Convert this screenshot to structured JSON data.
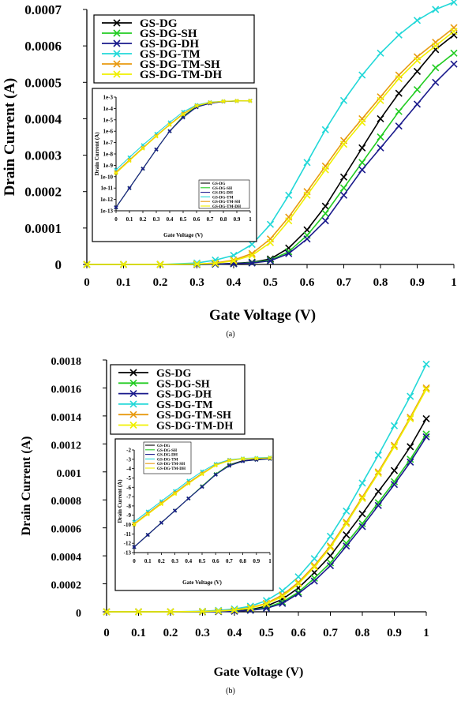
{
  "panels": [
    {
      "caption": "(a)",
      "chart_data": {
        "type": "line",
        "xlabel": "Gate Voltage (V)",
        "ylabel": "Drain Current (A)",
        "xlim": [
          0,
          1
        ],
        "ylim": [
          0,
          0.0007
        ],
        "x_ticks": [
          "0",
          "0.1",
          "0.2",
          "0.3",
          "0.4",
          "0.5",
          "0.6",
          "0.7",
          "0.8",
          "0.9",
          "1"
        ],
        "y_ticks": [
          "0",
          "0.0001",
          "0.0002",
          "0.0003",
          "0.0004",
          "0.0005",
          "0.0006",
          "0.0007"
        ],
        "grid": false,
        "legend_position": "top-left",
        "x": [
          0,
          0.1,
          0.2,
          0.3,
          0.35,
          0.4,
          0.45,
          0.5,
          0.55,
          0.6,
          0.65,
          0.7,
          0.75,
          0.8,
          0.85,
          0.9,
          0.95,
          1
        ],
        "series": [
          {
            "name": "GS-DG",
            "color": "#000000",
            "values": [
              0,
              0,
              0,
              0,
              1e-06,
              3e-06,
              6e-06,
              1.5e-05,
              4.5e-05,
              9.5e-05,
              0.00016,
              0.00024,
              0.00032,
              0.0004,
              0.00047,
              0.00053,
              0.00059,
              0.00063
            ]
          },
          {
            "name": "GS-DG-SH",
            "color": "#22cc22",
            "values": [
              0,
              0,
              0,
              0,
              1e-06,
              2e-06,
              5e-06,
              1.2e-05,
              3.5e-05,
              8e-05,
              0.00014,
              0.00021,
              0.00028,
              0.00035,
              0.00042,
              0.00048,
              0.00054,
              0.00058
            ]
          },
          {
            "name": "GS-DG-DH",
            "color": "#1a1a8c",
            "values": [
              0,
              0,
              0,
              0,
              1e-06,
              2e-06,
              4e-06,
              1e-05,
              3e-05,
              7e-05,
              0.00012,
              0.00019,
              0.00026,
              0.00032,
              0.00038,
              0.00044,
              0.0005,
              0.00055
            ]
          },
          {
            "name": "GS-DG-TM",
            "color": "#22d8d8",
            "values": [
              0,
              0,
              0,
              4e-06,
              1.2e-05,
              2.5e-05,
              5.5e-05,
              0.00011,
              0.00019,
              0.00028,
              0.00037,
              0.00045,
              0.00052,
              0.00058,
              0.00063,
              0.00067,
              0.0007,
              0.00072
            ]
          },
          {
            "name": "GS-DG-TM-SH",
            "color": "#e89a10",
            "values": [
              0,
              0,
              0,
              1e-06,
              4e-06,
              1.2e-05,
              3e-05,
              7e-05,
              0.00013,
              0.0002,
              0.00027,
              0.00034,
              0.0004,
              0.00046,
              0.00052,
              0.00057,
              0.00061,
              0.00065
            ]
          },
          {
            "name": "GS-DG-TM-DH",
            "color": "#f0f000",
            "values": [
              0,
              0,
              0,
              1e-06,
              3e-06,
              1e-05,
              2.5e-05,
              6e-05,
              0.00012,
              0.00019,
              0.00026,
              0.00033,
              0.00039,
              0.00045,
              0.00051,
              0.00056,
              0.0006,
              0.00064
            ]
          }
        ],
        "inset": {
          "type": "line",
          "xlabel": "Gate Voltage (V)",
          "ylabel": "Drain Current (A)",
          "y_scale": "log",
          "xlim": [
            0,
            1
          ],
          "ylim": [
            1e-13,
            0.001
          ],
          "x_ticks": [
            "0",
            "0.1",
            "0.2",
            "0.3",
            "0.4",
            "0.5",
            "0.6",
            "0.7",
            "0.8",
            "0.9",
            "1"
          ],
          "y_tick_values": [
            0.001,
            0.0001,
            1e-05,
            1e-06,
            1e-07,
            1e-08,
            1e-09,
            1e-10,
            1e-11,
            1e-12,
            1e-13
          ],
          "y_ticks": [
            "1e-3",
            "1e-4",
            "1e-5",
            "1e-6",
            "1e-7",
            "1e-8",
            "1e-9",
            "1e-10",
            "1e-11",
            "1e-12",
            "1e-13"
          ],
          "legend_position": "bottom-right",
          "legend": [
            "GS-DG",
            "GS-DG-SH",
            "GS-DG-DH",
            "GS-DG-TM",
            "GS-DG-TM-SH",
            "GS-DG-TM-DH"
          ],
          "x": [
            0,
            0.1,
            0.2,
            0.3,
            0.4,
            0.5,
            0.6,
            0.7,
            0.8,
            0.9,
            1
          ],
          "series": [
            {
              "name": "GS-DG",
              "color": "#000000",
              "values": [
                2e-13,
                1e-11,
                5e-10,
                2.5e-08,
                1e-06,
                2e-05,
                0.00015,
                0.0003,
                0.00042,
                0.00046,
                0.00047
              ]
            },
            {
              "name": "GS-DG-SH",
              "color": "#22cc22",
              "values": [
                2e-13,
                1e-11,
                5e-10,
                2.5e-08,
                1e-06,
                1.8e-05,
                0.00014,
                0.00029,
                0.00041,
                0.00045,
                0.00047
              ]
            },
            {
              "name": "GS-DG-DH",
              "color": "#1a1a8c",
              "values": [
                2e-13,
                1e-11,
                5e-10,
                2.5e-08,
                1e-06,
                1.6e-05,
                0.00013,
                0.00028,
                0.0004,
                0.00045,
                0.00047
              ]
            },
            {
              "name": "GS-DG-TM",
              "color": "#22d8d8",
              "values": [
                4e-10,
                5e-09,
                6e-08,
                6e-07,
                6e-06,
                5e-05,
                0.0002,
                0.00036,
                0.00044,
                0.00046,
                0.00047
              ]
            },
            {
              "name": "GS-DG-TM-SH",
              "color": "#e89a10",
              "values": [
                2.5e-10,
                3e-09,
                3.5e-08,
                4e-07,
                4e-06,
                3.5e-05,
                0.00018,
                0.00034,
                0.00043,
                0.00046,
                0.00047
              ]
            },
            {
              "name": "GS-DG-TM-DH",
              "color": "#f0f000",
              "values": [
                2e-10,
                2.5e-09,
                3e-08,
                3.5e-07,
                3.5e-06,
                3e-05,
                0.00017,
                0.00033,
                0.00043,
                0.00046,
                0.00047
              ]
            }
          ]
        }
      }
    },
    {
      "caption": "(b)",
      "chart_data": {
        "type": "line",
        "xlabel": "Gate Voltage (V)",
        "ylabel": "Drain Current (A)",
        "xlim": [
          0,
          1
        ],
        "ylim": [
          0,
          0.0018
        ],
        "x_ticks": [
          "0",
          "0.1",
          "0.2",
          "0.3",
          "0.4",
          "0.5",
          "0.6",
          "0.7",
          "0.8",
          "0.9",
          "1"
        ],
        "y_ticks": [
          "0",
          "0.0002",
          "0.0004",
          "0.0006",
          "0.0008",
          "0.001",
          "0.0012",
          "0.0014",
          "0.0016",
          "0.0018"
        ],
        "grid": false,
        "legend_position": "top-left",
        "x": [
          0,
          0.1,
          0.2,
          0.3,
          0.35,
          0.4,
          0.45,
          0.5,
          0.55,
          0.6,
          0.65,
          0.7,
          0.75,
          0.8,
          0.85,
          0.9,
          0.95,
          1
        ],
        "series": [
          {
            "name": "GS-DG",
            "color": "#000000",
            "values": [
              0,
              0,
              0,
              0,
              2e-06,
              6e-06,
              1.5e-05,
              4e-05,
              9e-05,
              0.00017,
              0.00028,
              0.0004,
              0.00055,
              0.0007,
              0.00086,
              0.00101,
              0.00118,
              0.00138
            ]
          },
          {
            "name": "GS-DG-SH",
            "color": "#22cc22",
            "values": [
              0,
              0,
              0,
              0,
              2e-06,
              5e-06,
              1.2e-05,
              3e-05,
              7e-05,
              0.00014,
              0.00024,
              0.00035,
              0.00049,
              0.00063,
              0.00078,
              0.00093,
              0.00109,
              0.00127
            ]
          },
          {
            "name": "GS-DG-DH",
            "color": "#1a1a8c",
            "values": [
              0,
              0,
              0,
              0,
              1e-06,
              4e-06,
              1e-05,
              2.5e-05,
              6e-05,
              0.00013,
              0.00022,
              0.00033,
              0.00047,
              0.00061,
              0.00076,
              0.00091,
              0.00107,
              0.00125
            ]
          },
          {
            "name": "GS-DG-TM",
            "color": "#22d8d8",
            "values": [
              0,
              0,
              0,
              4e-06,
              1e-05,
              2e-05,
              4e-05,
              8e-05,
              0.00015,
              0.00025,
              0.00038,
              0.00054,
              0.00072,
              0.00092,
              0.00112,
              0.00133,
              0.00154,
              0.00177
            ]
          },
          {
            "name": "GS-DG-TM-SH",
            "color": "#e89a10",
            "values": [
              0,
              0,
              0,
              2e-06,
              6e-06,
              1.4e-05,
              3e-05,
              6e-05,
              0.00012,
              0.00021,
              0.00033,
              0.00047,
              0.00064,
              0.00082,
              0.001,
              0.00119,
              0.00139,
              0.0016
            ]
          },
          {
            "name": "GS-DG-TM-DH",
            "color": "#f0f000",
            "values": [
              0,
              0,
              0,
              2e-06,
              5e-06,
              1.2e-05,
              2.7e-05,
              5.5e-05,
              0.00011,
              0.0002,
              0.00032,
              0.00046,
              0.00063,
              0.00081,
              0.00099,
              0.00118,
              0.00138,
              0.00159
            ]
          }
        ],
        "inset": {
          "type": "line",
          "xlabel": "Gate Voltage (V)",
          "ylabel": "Drain Current (A)",
          "xlim": [
            0,
            1
          ],
          "ylim": [
            -13,
            -2
          ],
          "x_ticks": [
            "0",
            "0.1",
            "0.2",
            "0.3",
            "0.4",
            "0.5",
            "0.6",
            "0.7",
            "0.8",
            "0.9",
            "1"
          ],
          "y_tick_values": [
            -2,
            -3,
            -4,
            -5,
            -6,
            -7,
            -8,
            -9,
            -10,
            -11,
            -12,
            -13
          ],
          "y_ticks": [
            "-2",
            "-3",
            "-4",
            "-5",
            "-6",
            "-7",
            "-8",
            "-9",
            "-10",
            "-11",
            "-12",
            "-13"
          ],
          "legend_position": "top-left",
          "legend": [
            "GS-DG",
            "GS-DG-SH",
            "GS-DG-DH",
            "GS-DG-TM",
            "GS-DG-TM-SH",
            "GS-DG-TM-DH"
          ],
          "x": [
            0,
            0.1,
            0.2,
            0.3,
            0.4,
            0.5,
            0.6,
            0.7,
            0.8,
            0.9,
            1
          ],
          "series": [
            {
              "name": "GS-DG",
              "color": "#000000",
              "values": [
                -12.4,
                -11.1,
                -9.8,
                -8.5,
                -7.2,
                -5.9,
                -4.6,
                -3.6,
                -3.15,
                -3.0,
                -2.95
              ]
            },
            {
              "name": "GS-DG-SH",
              "color": "#22cc22",
              "values": [
                -12.4,
                -11.1,
                -9.8,
                -8.5,
                -7.2,
                -5.9,
                -4.6,
                -3.65,
                -3.2,
                -3.05,
                -2.95
              ]
            },
            {
              "name": "GS-DG-DH",
              "color": "#1a1a8c",
              "values": [
                -12.4,
                -11.1,
                -9.8,
                -8.5,
                -7.2,
                -5.95,
                -4.65,
                -3.7,
                -3.2,
                -3.05,
                -2.95
              ]
            },
            {
              "name": "GS-DG-TM",
              "color": "#22d8d8",
              "values": [
                -9.7,
                -8.6,
                -7.5,
                -6.4,
                -5.3,
                -4.3,
                -3.5,
                -3.05,
                -2.9,
                -2.85,
                -2.8
              ]
            },
            {
              "name": "GS-DG-TM-SH",
              "color": "#e89a10",
              "values": [
                -9.9,
                -8.8,
                -7.7,
                -6.6,
                -5.5,
                -4.5,
                -3.6,
                -3.1,
                -2.95,
                -2.9,
                -2.85
              ]
            },
            {
              "name": "GS-DG-TM-DH",
              "color": "#f0f000",
              "values": [
                -10.0,
                -8.9,
                -7.8,
                -6.7,
                -5.6,
                -4.6,
                -3.65,
                -3.15,
                -2.95,
                -2.9,
                -2.85
              ]
            }
          ]
        }
      }
    }
  ]
}
